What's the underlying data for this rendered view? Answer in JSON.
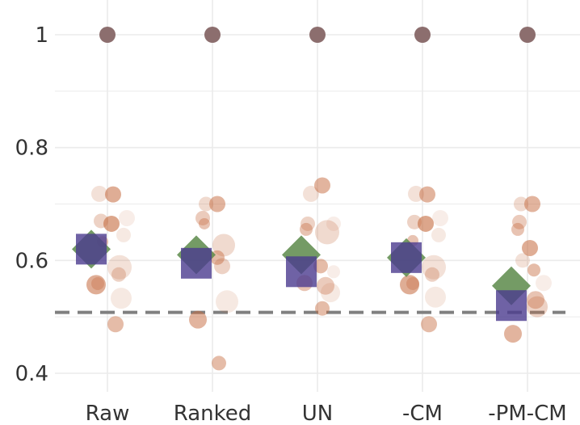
{
  "chart_data": {
    "type": "scatter",
    "title": "",
    "xlabel": "",
    "ylabel": "",
    "categories": [
      "Raw",
      "Ranked",
      "UN",
      "-CM",
      "-PM-CM"
    ],
    "yticks": [
      "0.4",
      "0.6",
      "0.8",
      "1"
    ],
    "ylim": [
      0.375,
      1.06
    ],
    "reference_line": {
      "y": 0.508,
      "style": "dashed",
      "color": "#808080"
    },
    "grid": true,
    "colors": {
      "top_point": "#8c6e6e",
      "scatter": "#c56a3e",
      "diamond": "#5c8a4a",
      "square": "#4b3b8f",
      "grid": "#ebebeb"
    },
    "top_points": [
      1,
      1,
      1,
      1,
      1
    ],
    "diamond_series": [
      0.62,
      0.61,
      0.61,
      0.605,
      0.555
    ],
    "square_series": [
      0.62,
      0.595,
      0.58,
      0.605,
      0.52
    ],
    "scatter_points": [
      {
        "cat": 0,
        "dx": -10,
        "y": 0.718,
        "size": 10,
        "alpha": 0.2
      },
      {
        "cat": 0,
        "dx": 7,
        "y": 0.717,
        "size": 10,
        "alpha": 0.55
      },
      {
        "cat": 0,
        "dx": -8,
        "y": 0.67,
        "size": 9,
        "alpha": 0.3
      },
      {
        "cat": 0,
        "dx": 5,
        "y": 0.665,
        "size": 10,
        "alpha": 0.6
      },
      {
        "cat": 0,
        "dx": 24,
        "y": 0.675,
        "size": 10,
        "alpha": 0.12
      },
      {
        "cat": 0,
        "dx": 20,
        "y": 0.645,
        "size": 9,
        "alpha": 0.15
      },
      {
        "cat": 0,
        "dx": -6,
        "y": 0.633,
        "size": 7,
        "alpha": 0.4
      },
      {
        "cat": 0,
        "dx": 15,
        "y": 0.588,
        "size": 15,
        "alpha": 0.2
      },
      {
        "cat": 0,
        "dx": 14,
        "y": 0.575,
        "size": 9,
        "alpha": 0.3
      },
      {
        "cat": 0,
        "dx": -14,
        "y": 0.557,
        "size": 12,
        "alpha": 0.55
      },
      {
        "cat": 0,
        "dx": -12,
        "y": 0.559,
        "size": 8,
        "alpha": 0.35
      },
      {
        "cat": 0,
        "dx": 17,
        "y": 0.533,
        "size": 13,
        "alpha": 0.15
      },
      {
        "cat": 0,
        "dx": 10,
        "y": 0.487,
        "size": 10,
        "alpha": 0.45
      },
      {
        "cat": 1,
        "dx": -8,
        "y": 0.7,
        "size": 9,
        "alpha": 0.25
      },
      {
        "cat": 1,
        "dx": 6,
        "y": 0.7,
        "size": 10,
        "alpha": 0.5
      },
      {
        "cat": 1,
        "dx": -12,
        "y": 0.675,
        "size": 9,
        "alpha": 0.35
      },
      {
        "cat": 1,
        "dx": -10,
        "y": 0.665,
        "size": 7,
        "alpha": 0.4
      },
      {
        "cat": 1,
        "dx": 14,
        "y": 0.627,
        "size": 14,
        "alpha": 0.25
      },
      {
        "cat": 1,
        "dx": 6,
        "y": 0.605,
        "size": 9,
        "alpha": 0.45
      },
      {
        "cat": 1,
        "dx": 12,
        "y": 0.59,
        "size": 10,
        "alpha": 0.3
      },
      {
        "cat": 1,
        "dx": 18,
        "y": 0.527,
        "size": 14,
        "alpha": 0.15
      },
      {
        "cat": 1,
        "dx": -18,
        "y": 0.495,
        "size": 11,
        "alpha": 0.5
      },
      {
        "cat": 1,
        "dx": 8,
        "y": 0.418,
        "size": 9,
        "alpha": 0.45
      },
      {
        "cat": 2,
        "dx": -8,
        "y": 0.718,
        "size": 10,
        "alpha": 0.2
      },
      {
        "cat": 2,
        "dx": 6,
        "y": 0.733,
        "size": 10,
        "alpha": 0.5
      },
      {
        "cat": 2,
        "dx": -12,
        "y": 0.665,
        "size": 9,
        "alpha": 0.3
      },
      {
        "cat": 2,
        "dx": 20,
        "y": 0.665,
        "size": 9,
        "alpha": 0.12
      },
      {
        "cat": 2,
        "dx": -14,
        "y": 0.655,
        "size": 8,
        "alpha": 0.4
      },
      {
        "cat": 2,
        "dx": 12,
        "y": 0.65,
        "size": 15,
        "alpha": 0.25
      },
      {
        "cat": 2,
        "dx": 4,
        "y": 0.59,
        "size": 9,
        "alpha": 0.45
      },
      {
        "cat": 2,
        "dx": 20,
        "y": 0.58,
        "size": 8,
        "alpha": 0.12
      },
      {
        "cat": 2,
        "dx": -16,
        "y": 0.56,
        "size": 10,
        "alpha": 0.4
      },
      {
        "cat": 2,
        "dx": 10,
        "y": 0.555,
        "size": 11,
        "alpha": 0.35
      },
      {
        "cat": 2,
        "dx": 16,
        "y": 0.543,
        "size": 12,
        "alpha": 0.15
      },
      {
        "cat": 2,
        "dx": 6,
        "y": 0.515,
        "size": 9,
        "alpha": 0.45
      },
      {
        "cat": 3,
        "dx": -8,
        "y": 0.718,
        "size": 10,
        "alpha": 0.2
      },
      {
        "cat": 3,
        "dx": 6,
        "y": 0.717,
        "size": 10,
        "alpha": 0.5
      },
      {
        "cat": 3,
        "dx": -10,
        "y": 0.668,
        "size": 9,
        "alpha": 0.3
      },
      {
        "cat": 3,
        "dx": 4,
        "y": 0.665,
        "size": 10,
        "alpha": 0.6
      },
      {
        "cat": 3,
        "dx": 22,
        "y": 0.675,
        "size": 10,
        "alpha": 0.12
      },
      {
        "cat": 3,
        "dx": 20,
        "y": 0.645,
        "size": 9,
        "alpha": 0.15
      },
      {
        "cat": 3,
        "dx": -12,
        "y": 0.635,
        "size": 7,
        "alpha": 0.4
      },
      {
        "cat": 3,
        "dx": 14,
        "y": 0.588,
        "size": 15,
        "alpha": 0.2
      },
      {
        "cat": 3,
        "dx": 12,
        "y": 0.575,
        "size": 9,
        "alpha": 0.3
      },
      {
        "cat": 3,
        "dx": -16,
        "y": 0.557,
        "size": 12,
        "alpha": 0.55
      },
      {
        "cat": 3,
        "dx": -12,
        "y": 0.559,
        "size": 8,
        "alpha": 0.35
      },
      {
        "cat": 3,
        "dx": 16,
        "y": 0.535,
        "size": 13,
        "alpha": 0.15
      },
      {
        "cat": 3,
        "dx": 8,
        "y": 0.487,
        "size": 10,
        "alpha": 0.45
      },
      {
        "cat": 4,
        "dx": -8,
        "y": 0.7,
        "size": 9,
        "alpha": 0.25
      },
      {
        "cat": 4,
        "dx": 6,
        "y": 0.7,
        "size": 10,
        "alpha": 0.5
      },
      {
        "cat": 4,
        "dx": -10,
        "y": 0.668,
        "size": 9,
        "alpha": 0.35
      },
      {
        "cat": 4,
        "dx": -12,
        "y": 0.655,
        "size": 8,
        "alpha": 0.4
      },
      {
        "cat": 4,
        "dx": 3,
        "y": 0.622,
        "size": 10,
        "alpha": 0.55
      },
      {
        "cat": 4,
        "dx": -6,
        "y": 0.6,
        "size": 9,
        "alpha": 0.2
      },
      {
        "cat": 4,
        "dx": 8,
        "y": 0.583,
        "size": 8,
        "alpha": 0.45
      },
      {
        "cat": 4,
        "dx": 20,
        "y": 0.56,
        "size": 10,
        "alpha": 0.12
      },
      {
        "cat": 4,
        "dx": 10,
        "y": 0.53,
        "size": 11,
        "alpha": 0.4
      },
      {
        "cat": 4,
        "dx": 12,
        "y": 0.518,
        "size": 13,
        "alpha": 0.3
      },
      {
        "cat": 4,
        "dx": -18,
        "y": 0.47,
        "size": 11,
        "alpha": 0.5
      }
    ]
  }
}
